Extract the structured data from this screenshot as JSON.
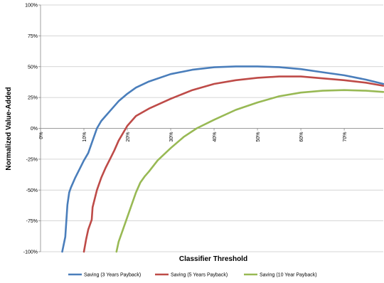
{
  "chart_data": {
    "type": "line",
    "xlabel": "Classifier Threshold",
    "ylabel": "Normalized Value-Added",
    "xlim": [
      0,
      0.79
    ],
    "ylim": [
      -1.0,
      1.0
    ],
    "x_ticks": [
      0,
      0.1,
      0.2,
      0.3,
      0.4,
      0.5,
      0.6,
      0.7
    ],
    "x_tick_labels": [
      "0%",
      "10%",
      "20%",
      "30%",
      "40%",
      "50%",
      "60%",
      "70%"
    ],
    "y_ticks": [
      1.0,
      0.75,
      0.5,
      0.25,
      0,
      -0.25,
      -0.5,
      -0.75,
      -1.0
    ],
    "y_tick_labels": [
      "100%",
      "75%",
      "50%",
      "25%",
      "0%",
      "-25%",
      "-50%",
      "-75%",
      "-100%"
    ],
    "grid": "horizontal",
    "legend_position": "bottom",
    "series": [
      {
        "name": "Saving (3 Years Payback)",
        "color": "#4a7ebb",
        "x": [
          0.05,
          0.057,
          0.062,
          0.066,
          0.07,
          0.08,
          0.09,
          0.1,
          0.11,
          0.12,
          0.13,
          0.14,
          0.15,
          0.16,
          0.18,
          0.2,
          0.22,
          0.25,
          0.3,
          0.35,
          0.4,
          0.45,
          0.5,
          0.55,
          0.6,
          0.65,
          0.7,
          0.75,
          0.79
        ],
        "y": [
          -1.0,
          -0.88,
          -0.62,
          -0.52,
          -0.48,
          -0.4,
          -0.33,
          -0.26,
          -0.2,
          -0.1,
          0.0,
          0.06,
          0.1,
          0.14,
          0.22,
          0.28,
          0.33,
          0.38,
          0.44,
          0.475,
          0.495,
          0.502,
          0.502,
          0.496,
          0.48,
          0.455,
          0.43,
          0.395,
          0.36
        ]
      },
      {
        "name": "Saving (5 Years Payback)",
        "color": "#be4b48",
        "x": [
          0.1,
          0.105,
          0.11,
          0.118,
          0.12,
          0.13,
          0.14,
          0.15,
          0.16,
          0.17,
          0.18,
          0.19,
          0.2,
          0.22,
          0.25,
          0.3,
          0.35,
          0.4,
          0.45,
          0.5,
          0.55,
          0.6,
          0.65,
          0.7,
          0.75,
          0.79
        ],
        "y": [
          -1.0,
          -0.9,
          -0.82,
          -0.74,
          -0.64,
          -0.5,
          -0.4,
          -0.32,
          -0.25,
          -0.18,
          -0.1,
          -0.04,
          0.02,
          0.1,
          0.16,
          0.24,
          0.31,
          0.36,
          0.39,
          0.41,
          0.42,
          0.42,
          0.405,
          0.39,
          0.37,
          0.345
        ]
      },
      {
        "name": "Saving (10 Year Payback)",
        "color": "#98b954",
        "x": [
          0.175,
          0.18,
          0.19,
          0.2,
          0.21,
          0.22,
          0.23,
          0.24,
          0.25,
          0.27,
          0.3,
          0.33,
          0.36,
          0.4,
          0.45,
          0.5,
          0.55,
          0.6,
          0.65,
          0.7,
          0.75,
          0.79
        ],
        "y": [
          -1.0,
          -0.92,
          -0.82,
          -0.72,
          -0.62,
          -0.52,
          -0.44,
          -0.39,
          -0.35,
          -0.26,
          -0.16,
          -0.07,
          0.0,
          0.07,
          0.15,
          0.21,
          0.26,
          0.29,
          0.305,
          0.31,
          0.305,
          0.295
        ]
      }
    ]
  }
}
